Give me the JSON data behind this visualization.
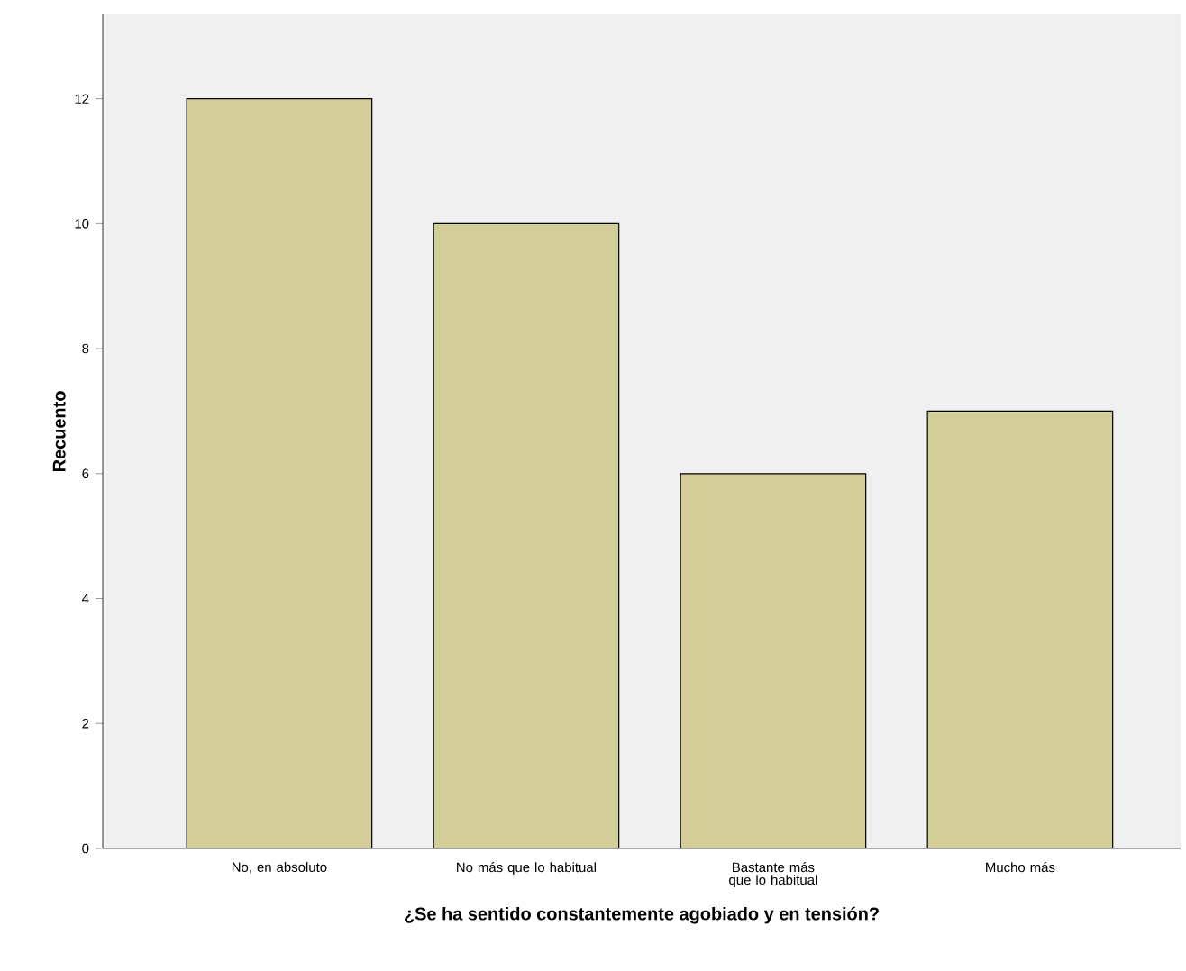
{
  "chart_data": {
    "type": "bar",
    "xlabel": "¿Se ha sentido constantemente agobiado y en tensión?",
    "ylabel": "Recuento",
    "categories": [
      "No, en absoluto",
      "No más que lo habitual",
      "Bastante más que lo habitual",
      "Mucho más"
    ],
    "values": [
      12,
      10,
      6,
      7
    ],
    "color": "#d3ce97",
    "ylim": [
      0,
      13.35
    ],
    "yticks": [
      0,
      2,
      4,
      6,
      8,
      10,
      12
    ]
  }
}
